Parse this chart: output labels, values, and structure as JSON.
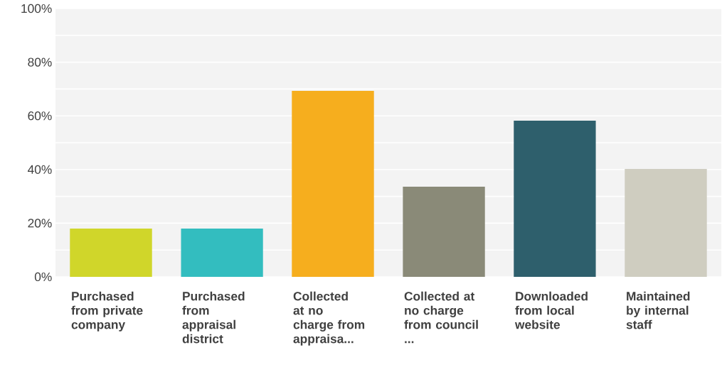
{
  "chart_data": {
    "type": "bar",
    "categories": [
      "Purchased from private company",
      "Purchased from appraisal district",
      "Collected at no charge from appraisa...",
      "Collected at no charge from council ...",
      "Downloaded from local website",
      "Maintained by internal staff"
    ],
    "values": [
      18,
      18,
      69.3,
      33.6,
      58.2,
      40.2
    ],
    "colors": [
      "#d0d62a",
      "#33bdbf",
      "#f6ae1e",
      "#8a8a78",
      "#2e5f6c",
      "#cfcdc0"
    ],
    "ylim": [
      0,
      100
    ],
    "yticks": [
      {
        "value": 0,
        "label": "0%"
      },
      {
        "value": 10,
        "label": null
      },
      {
        "value": 20,
        "label": "20%"
      },
      {
        "value": 30,
        "label": null
      },
      {
        "value": 40,
        "label": "40%"
      },
      {
        "value": 50,
        "label": null
      },
      {
        "value": 60,
        "label": "60%"
      },
      {
        "value": 70,
        "label": null
      },
      {
        "value": 80,
        "label": "80%"
      },
      {
        "value": 90,
        "label": null
      },
      {
        "value": 100,
        "label": "100%"
      }
    ],
    "grid": "y"
  }
}
